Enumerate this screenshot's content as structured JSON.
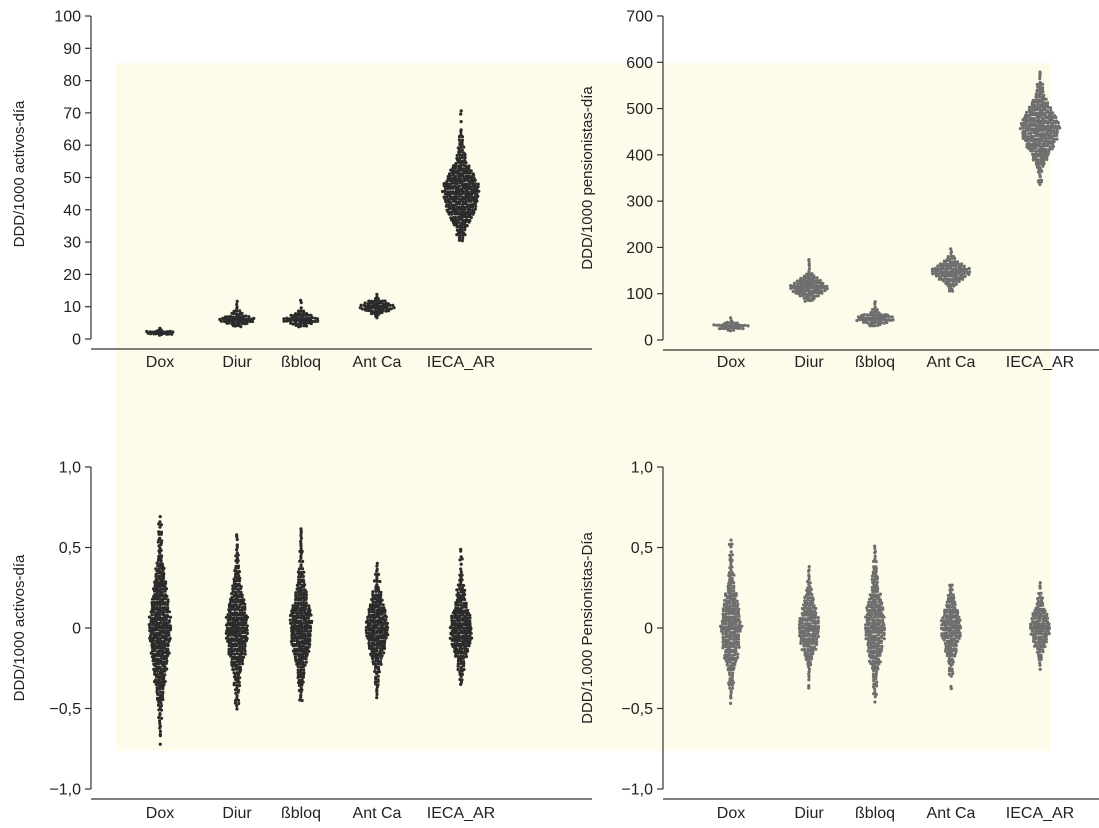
{
  "background_color": "#fdfbea",
  "chart_data": [
    {
      "type": "scatter",
      "subtype": "beeswarm",
      "ylabel": "DDD/1000 activos-día",
      "xlabel": "",
      "categories": [
        "Dox",
        "Diur",
        "ßbloq",
        "Ant Ca",
        "IECA_AR"
      ],
      "ylim": [
        0,
        100
      ],
      "yticks": [
        0,
        10,
        20,
        30,
        40,
        50,
        60,
        70,
        80,
        90,
        100
      ],
      "ytick_labels": [
        "0",
        "10",
        "20",
        "30",
        "40",
        "50",
        "60",
        "70",
        "80",
        "90",
        "100"
      ],
      "point_color": "#2b2b2b",
      "distributions": [
        {
          "category": "Dox",
          "min": 1.0,
          "median": 2.0,
          "max": 3.5
        },
        {
          "category": "Diur",
          "min": 4.0,
          "median": 6.0,
          "max": 11.5
        },
        {
          "category": "ßbloq",
          "min": 4.0,
          "median": 6.0,
          "max": 12.0
        },
        {
          "category": "Ant Ca",
          "min": 6.5,
          "median": 10.0,
          "max": 14.0
        },
        {
          "category": "IECA_AR",
          "min": 30.5,
          "median": 45.0,
          "max": 70.5
        }
      ]
    },
    {
      "type": "scatter",
      "subtype": "beeswarm",
      "ylabel": "DDD/1000 pensionistas-día",
      "xlabel": "",
      "categories": [
        "Dox",
        "Diur",
        "ßbloq",
        "Ant Ca",
        "IECA_AR"
      ],
      "ylim": [
        0,
        700
      ],
      "yticks": [
        0,
        100,
        200,
        300,
        400,
        500,
        600,
        700
      ],
      "ytick_labels": [
        "0",
        "100",
        "200",
        "300",
        "400",
        "500",
        "600",
        "700"
      ],
      "point_color": "#6e6e6e",
      "distributions": [
        {
          "category": "Dox",
          "min": 20,
          "median": 30,
          "max": 48
        },
        {
          "category": "Diur",
          "min": 85,
          "median": 113,
          "max": 175
        },
        {
          "category": "ßbloq",
          "min": 32,
          "median": 46,
          "max": 82
        },
        {
          "category": "Ant Ca",
          "min": 105,
          "median": 147,
          "max": 197
        },
        {
          "category": "IECA_AR",
          "min": 335,
          "median": 455,
          "max": 580
        }
      ]
    },
    {
      "type": "scatter",
      "subtype": "beeswarm",
      "ylabel": "DDD/1000 activos-día",
      "xlabel": "",
      "categories": [
        "Dox",
        "Diur",
        "ßbloq",
        "Ant Ca",
        "IECA_AR"
      ],
      "ylim": [
        -1.0,
        1.0
      ],
      "yticks": [
        -1.0,
        -0.5,
        0,
        0.5,
        1.0
      ],
      "ytick_labels": [
        "−1,0",
        "−0,5",
        "0",
        "0,5",
        "1,0"
      ],
      "point_color": "#2b2b2b",
      "distributions": [
        {
          "category": "Dox",
          "min": -0.72,
          "median": 0.0,
          "max": 0.69
        },
        {
          "category": "Diur",
          "min": -0.5,
          "median": 0.0,
          "max": 0.58
        },
        {
          "category": "ßbloq",
          "min": -0.45,
          "median": 0.0,
          "max": 0.62
        },
        {
          "category": "Ant Ca",
          "min": -0.43,
          "median": 0.0,
          "max": 0.4
        },
        {
          "category": "IECA_AR",
          "min": -0.35,
          "median": 0.0,
          "max": 0.49
        }
      ]
    },
    {
      "type": "scatter",
      "subtype": "beeswarm",
      "ylabel": "DDD/1.000 Pensionistas-Día",
      "xlabel": "",
      "categories": [
        "Dox",
        "Diur",
        "ßbloq",
        "Ant Ca",
        "IECA_AR"
      ],
      "ylim": [
        -1.0,
        1.0
      ],
      "yticks": [
        -1.0,
        -0.5,
        0,
        0.5,
        1.0
      ],
      "ytick_labels": [
        "−1,0",
        "−0,5",
        "0",
        "0,5",
        "1,0"
      ],
      "point_color": "#6e6e6e",
      "distributions": [
        {
          "category": "Dox",
          "min": -0.47,
          "median": 0.0,
          "max": 0.55
        },
        {
          "category": "Diur",
          "min": -0.37,
          "median": 0.0,
          "max": 0.38
        },
        {
          "category": "ßbloq",
          "min": -0.46,
          "median": 0.0,
          "max": 0.51
        },
        {
          "category": "Ant Ca",
          "min": -0.38,
          "median": 0.0,
          "max": 0.27
        },
        {
          "category": "IECA_AR",
          "min": -0.26,
          "median": 0.0,
          "max": 0.28
        }
      ]
    }
  ]
}
